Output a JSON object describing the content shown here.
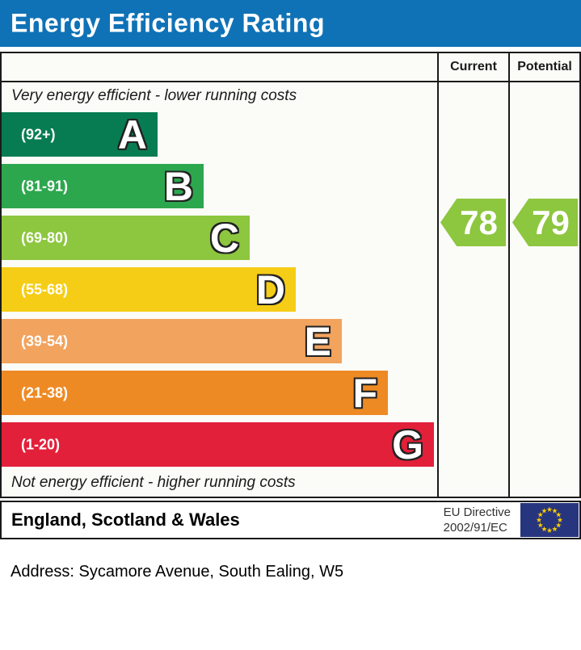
{
  "title": "Energy Efficiency Rating",
  "columns": {
    "current": "Current",
    "potential": "Potential"
  },
  "notes": {
    "top": "Very energy efficient - lower running costs",
    "bottom": "Not energy efficient - higher running costs"
  },
  "bands": [
    {
      "letter": "A",
      "range_label": "(92+)",
      "min": 92,
      "max": 100,
      "color": "#077c52"
    },
    {
      "letter": "B",
      "range_label": "(81-91)",
      "min": 81,
      "max": 91,
      "color": "#2da74e"
    },
    {
      "letter": "C",
      "range_label": "(69-80)",
      "min": 69,
      "max": 80,
      "color": "#8dc63f"
    },
    {
      "letter": "D",
      "range_label": "(55-68)",
      "min": 55,
      "max": 68,
      "color": "#f6cd16"
    },
    {
      "letter": "E",
      "range_label": "(39-54)",
      "min": 39,
      "max": 54,
      "color": "#f2a35e"
    },
    {
      "letter": "F",
      "range_label": "(21-38)",
      "min": 21,
      "max": 38,
      "color": "#ee8a24"
    },
    {
      "letter": "G",
      "range_label": "(1-20)",
      "min": 1,
      "max": 20,
      "color": "#e2203a"
    }
  ],
  "ratings": {
    "current": {
      "value": 78,
      "color": "#8dc63f"
    },
    "potential": {
      "value": 79,
      "color": "#8dc63f"
    }
  },
  "footer": {
    "region": "England, Scotland & Wales",
    "directive_line1": "EU Directive",
    "directive_line2": "2002/91/EC",
    "flag": {
      "bg": "#27357e",
      "stars": "#ffcc00",
      "count": 12
    }
  },
  "address": "Address: Sycamore Avenue, South Ealing, W5",
  "colors": {
    "header_bg": "#0f72b6",
    "header_text": "#ffffff",
    "border": "#1a1a1a",
    "panel_bg": "#fbfbf7"
  },
  "chart_data": {
    "type": "bar",
    "title": "Energy Efficiency Rating",
    "categories": [
      "A",
      "B",
      "C",
      "D",
      "E",
      "F",
      "G"
    ],
    "band_ranges": [
      "92+",
      "81-91",
      "69-80",
      "55-68",
      "39-54",
      "21-38",
      "1-20"
    ],
    "band_colors": [
      "#077c52",
      "#2da74e",
      "#8dc63f",
      "#f6cd16",
      "#f2a35e",
      "#ee8a24",
      "#e2203a"
    ],
    "series": [
      {
        "name": "Current",
        "values": [
          78
        ],
        "band": "C"
      },
      {
        "name": "Potential",
        "values": [
          79
        ],
        "band": "C"
      }
    ],
    "value_range": [
      1,
      100
    ],
    "top_note": "Very energy efficient - lower running costs",
    "bottom_note": "Not energy efficient - higher running costs",
    "footer": "England, Scotland & Wales — EU Directive 2002/91/EC"
  }
}
